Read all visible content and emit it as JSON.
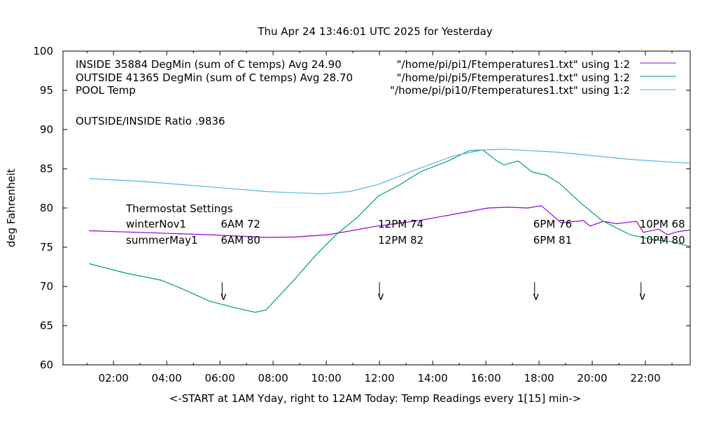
{
  "chart_data": {
    "type": "line",
    "title": "Thu Apr 24 13:46:01 UTC 2025 for Yesterday",
    "xlabel": "<-START at 1AM Yday, right to 12AM Today:  Temp Readings every 1[15] min->",
    "ylabel": "deg Fahrenheit",
    "ylim": [
      60,
      100
    ],
    "xlim": [
      "00:06",
      "23:41"
    ],
    "yticks": [
      60,
      65,
      70,
      75,
      80,
      85,
      90,
      95,
      100
    ],
    "xticks": [
      "02:00",
      "04:00",
      "06:00",
      "08:00",
      "10:00",
      "12:00",
      "14:00",
      "16:00",
      "18:00",
      "20:00",
      "22:00"
    ],
    "grid": false,
    "legend_position": "top",
    "series": [
      {
        "name": "INSIDE 35884 DegMin (sum of C temps) Avg 24.90",
        "source": "\"/home/pi/pi1/Ftemperatures1.txt\" using 1:2",
        "color": "#9400d3",
        "x": [
          "01:05",
          "05:35",
          "07:45",
          "08:50",
          "10:05",
          "11:55",
          "13:30",
          "16:05",
          "16:50",
          "17:35",
          "18:05",
          "18:50",
          "19:40",
          "19:55",
          "20:25",
          "20:55",
          "21:40",
          "21:55",
          "22:30",
          "22:50",
          "23:15",
          "23:41"
        ],
        "y": [
          77.1,
          76.6,
          76.25,
          76.3,
          76.6,
          77.7,
          78.4,
          80.0,
          80.1,
          80.0,
          80.3,
          78.1,
          78.4,
          77.7,
          78.3,
          78.0,
          78.3,
          76.9,
          77.3,
          76.6,
          77.0,
          77.2
        ]
      },
      {
        "name": "OUTSIDE 41365 DegMin (sum of C temps) Avg 28.70",
        "source": "\"/home/pi/pi5/Ftemperatures1.txt\" using 1:2",
        "color": "#009e73",
        "x": [
          "01:05",
          "02:28",
          "03:47",
          "04:35",
          "05:38",
          "06:41",
          "07:20",
          "07:44",
          "08:47",
          "09:35",
          "10:22",
          "11:10",
          "11:57",
          "12:44",
          "13:32",
          "14:35",
          "15:22",
          "15:53",
          "16:25",
          "16:41",
          "17:13",
          "17:44",
          "18:16",
          "18:47",
          "19:35",
          "20:22",
          "21:25",
          "22:13",
          "23:00",
          "23:41"
        ],
        "y": [
          72.9,
          71.7,
          70.8,
          69.7,
          68.1,
          67.2,
          66.7,
          67.0,
          70.8,
          73.9,
          76.6,
          78.8,
          81.5,
          82.9,
          84.6,
          86.0,
          87.3,
          87.4,
          86.0,
          85.5,
          86.0,
          84.6,
          84.2,
          83.1,
          80.6,
          78.4,
          76.6,
          76.0,
          75.7,
          75.1
        ]
      },
      {
        "name": "POOL Temp",
        "source": "\"/home/pi/pi10/Ftemperatures1.txt\" using 1:2",
        "color": "#56b4e9",
        "x": [
          "01:05",
          "03:00",
          "05:38",
          "07:44",
          "09:50",
          "10:53",
          "11:57",
          "13:32",
          "14:50",
          "15:53",
          "16:41",
          "18:47",
          "21:25",
          "23:41"
        ],
        "y": [
          83.75,
          83.4,
          82.7,
          82.1,
          81.8,
          82.1,
          83.0,
          85.1,
          86.7,
          87.4,
          87.5,
          87.1,
          86.2,
          85.7
        ]
      }
    ],
    "annotations": {
      "ratio": "OUTSIDE/INSIDE Ratio .9836",
      "thermostat_title": "Thermostat Settings",
      "winter_label": "winterNov1",
      "summer_label": "summerMay1",
      "settings": [
        {
          "time": "06:05",
          "winter": "6AM 72",
          "summer": "6AM 80"
        },
        {
          "time": "12:00",
          "winter": "12PM 74",
          "summer": "12PM 82"
        },
        {
          "time": "17:50",
          "winter": "6PM 76",
          "summer": "6PM 81"
        },
        {
          "time": "21:50",
          "winter": "10PM 68",
          "summer": "10PM 80"
        }
      ],
      "arrow_glyph": "v"
    }
  }
}
